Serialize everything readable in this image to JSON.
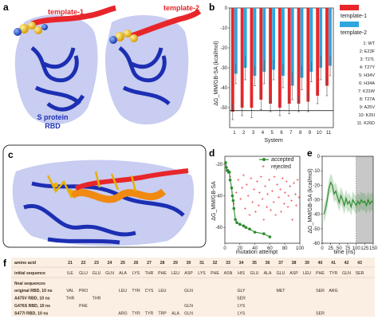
{
  "panels": {
    "a": "a",
    "b": "b",
    "c": "c",
    "d": "d",
    "e": "e",
    "f": "f"
  },
  "structure_labels": {
    "template1": "template-1",
    "template2": "template-2",
    "protein_line1": "S protein",
    "protein_line2": "RBD"
  },
  "colors": {
    "red": "#e8262a",
    "cyan": "#2fa6dd",
    "green": "#2e8b2e",
    "rbd_blue": "#1c2fb3",
    "table_bg": "#fbeee2"
  },
  "chart_data": [
    {
      "id": "b",
      "type": "bar",
      "xlabel": "System",
      "ylabel": "ΔG_MM/GB-SA (kcal/mol)",
      "ylim": [
        -60,
        0
      ],
      "yticks": [
        0,
        -10,
        -20,
        -30,
        -40,
        -50
      ],
      "categories": [
        "1",
        "2",
        "3",
        "4",
        "5",
        "6",
        "7",
        "8",
        "9",
        "10",
        "11"
      ],
      "reference_line": -51.5,
      "series": [
        {
          "name": "template-1",
          "color": "#e8262a",
          "values": [
            -52,
            -50,
            -50,
            -46,
            -48,
            -50,
            -48,
            -48,
            -47,
            -44,
            -39
          ],
          "errors": [
            4,
            4,
            5,
            5,
            4,
            4,
            5,
            4,
            5,
            4,
            5
          ]
        },
        {
          "name": "template-2",
          "color": "#2fa6dd",
          "values": [
            -33,
            -30,
            -34,
            -32,
            -31,
            -34,
            -39,
            -35,
            -32,
            -30,
            -29
          ],
          "errors": [
            5,
            6,
            5,
            6,
            5,
            6,
            7,
            6,
            5,
            6,
            5
          ]
        }
      ],
      "legend": "right",
      "mutations": [
        "1: WT",
        "2: E23F",
        "3: T27L",
        "4: T27Y",
        "5: H34V",
        "6: H34A",
        "7: K31W",
        "8: T27A",
        "9: A25V",
        "10: K26I",
        "11: K26D"
      ]
    },
    {
      "id": "d",
      "type": "scatter",
      "xlabel": "mutation attempt",
      "ylabel": "ΔG_MM/GB-SA",
      "xlim": [
        0,
        100
      ],
      "ylim": [
        -70,
        -15
      ],
      "xticks": [
        0,
        20,
        40,
        60,
        80,
        100
      ],
      "yticks": [
        -20,
        -40,
        -60
      ],
      "legend": "top-right",
      "series": [
        {
          "name": "accepted",
          "color": "#2e8b2e",
          "points": [
            [
              1,
              -19
            ],
            [
              2,
              -22
            ],
            [
              3,
              -24
            ],
            [
              4,
              -24
            ],
            [
              5,
              -25
            ],
            [
              6,
              -25
            ],
            [
              7,
              -30
            ],
            [
              9,
              -35
            ],
            [
              10,
              -40
            ],
            [
              11,
              -43
            ],
            [
              12,
              -48
            ],
            [
              14,
              -55
            ],
            [
              16,
              -57
            ],
            [
              20,
              -58
            ],
            [
              25,
              -59
            ],
            [
              28,
              -60
            ],
            [
              33,
              -61
            ],
            [
              40,
              -63
            ],
            [
              52,
              -64
            ],
            [
              60,
              -66
            ]
          ]
        },
        {
          "name": "rejected",
          "color": "#e8262a",
          "points": [
            [
              7,
              -28
            ],
            [
              12,
              -45
            ],
            [
              15,
              -38
            ],
            [
              18,
              -30
            ],
            [
              21,
              -42
            ],
            [
              23,
              -35
            ],
            [
              25,
              -27
            ],
            [
              27,
              -48
            ],
            [
              29,
              -33
            ],
            [
              31,
              -40
            ],
            [
              33,
              -52
            ],
            [
              35,
              -29
            ],
            [
              37,
              -44
            ],
            [
              39,
              -36
            ],
            [
              41,
              -50
            ],
            [
              43,
              -31
            ],
            [
              45,
              -46
            ],
            [
              46,
              -38
            ],
            [
              48,
              -28
            ],
            [
              50,
              -42
            ],
            [
              52,
              -55
            ],
            [
              54,
              -34
            ],
            [
              56,
              -47
            ],
            [
              57,
              -39
            ],
            [
              59,
              -30
            ],
            [
              61,
              -49
            ],
            [
              63,
              -37
            ],
            [
              65,
              -44
            ],
            [
              66,
              -28
            ],
            [
              68,
              -52
            ],
            [
              70,
              -33
            ],
            [
              72,
              -41
            ],
            [
              74,
              -36
            ],
            [
              75,
              -50
            ],
            [
              77,
              -29
            ],
            [
              79,
              -45
            ],
            [
              80,
              -38
            ],
            [
              82,
              -31
            ],
            [
              84,
              -47
            ],
            [
              85,
              -40
            ],
            [
              87,
              -34
            ],
            [
              89,
              -43
            ],
            [
              90,
              -55
            ],
            [
              92,
              -32
            ],
            [
              94,
              -39
            ],
            [
              95,
              -46
            ],
            [
              97,
              -30
            ],
            [
              99,
              -41
            ]
          ]
        }
      ]
    },
    {
      "id": "e",
      "type": "line",
      "xlabel": "time (ns)",
      "ylabel": "ΔG_MM/GB-SA (kcal/mol)",
      "xlim": [
        0,
        150
      ],
      "ylim": [
        -60,
        0
      ],
      "xticks": [
        0,
        25,
        50,
        75,
        100,
        125,
        150
      ],
      "yticks": [
        0,
        -10,
        -20,
        -30,
        -40,
        -50,
        -60
      ],
      "shaded_region": [
        100,
        150
      ],
      "series": [
        {
          "name": "",
          "color": "#2e8b2e",
          "x": [
            5,
            10,
            15,
            20,
            25,
            30,
            35,
            40,
            45,
            50,
            55,
            60,
            65,
            70,
            75,
            80,
            85,
            90,
            95,
            100,
            105,
            110,
            115,
            120,
            125,
            130,
            135,
            140,
            145,
            150
          ],
          "y": [
            -40,
            -36,
            -30,
            -22,
            -18,
            -20,
            -26,
            -24,
            -28,
            -32,
            -27,
            -30,
            -34,
            -29,
            -33,
            -31,
            -35,
            -30,
            -32,
            -34,
            -31,
            -33,
            -30,
            -32,
            -31,
            -34,
            -30,
            -33,
            -31,
            -32
          ]
        }
      ]
    }
  ],
  "table": {
    "header_label": "amino acid",
    "positions": [
      "21",
      "22",
      "23",
      "24",
      "25",
      "26",
      "27",
      "28",
      "29",
      "30",
      "31",
      "32",
      "33",
      "34",
      "35",
      "36",
      "37",
      "38",
      "39",
      "40",
      "41",
      "42",
      "43"
    ],
    "initial_label": "initial sequence",
    "initial": [
      "ILE",
      "GLU",
      "GLU",
      "GLN",
      "ALA",
      "LYS",
      "THR",
      "PHE",
      "LEU",
      "ASP",
      "LYS",
      "PHE",
      "ASN",
      "HIS",
      "GLU",
      "ALA",
      "GLU",
      "ASP",
      "LEU",
      "PHE",
      "TYR",
      "GLN",
      "SER"
    ],
    "final_label": "final sequences",
    "rows": [
      {
        "label": "original RBD, 10 ns",
        "cells": [
          "VAL",
          "PRO",
          "",
          "",
          "LEU",
          "TYR",
          "CYS",
          "LEU",
          "",
          "GLN",
          "",
          "",
          "",
          "GLY",
          "",
          "",
          "MET",
          "",
          "",
          "SER",
          "ARG",
          "",
          ""
        ]
      },
      {
        "label": "A475V RBD, 10 ns",
        "cells": [
          "THR",
          "",
          "THR",
          "",
          "",
          "",
          "",
          "",
          "",
          "",
          "",
          "",
          "",
          "SER",
          "",
          "",
          "",
          "",
          "",
          "",
          "",
          "",
          ""
        ]
      },
      {
        "label": "G476S RBD, 10 ns",
        "cells": [
          "",
          "PHE",
          "",
          "",
          "",
          "",
          "",
          "",
          "",
          "GLN",
          "",
          "",
          "",
          "LYS",
          "",
          "",
          "",
          "",
          "",
          "",
          "",
          "",
          ""
        ]
      },
      {
        "label": "S477I RBD, 10 ns",
        "cells": [
          "",
          "",
          "",
          "",
          "ARG",
          "TYR",
          "TYR",
          "TRP",
          "ALA",
          "GLN",
          "",
          "",
          "",
          "LYS",
          "",
          "",
          "",
          "",
          "",
          "SER",
          "",
          "",
          ""
        ]
      }
    ]
  }
}
